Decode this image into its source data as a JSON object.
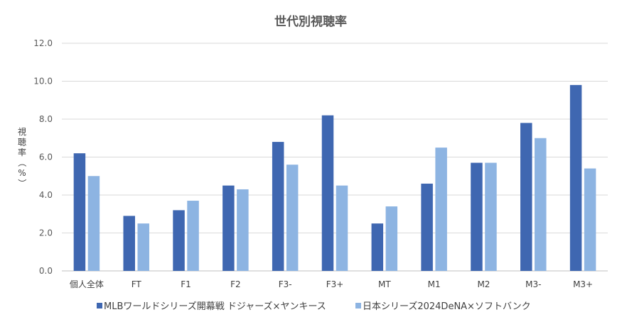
{
  "chart_data": {
    "type": "bar",
    "title": "世代別視聴率",
    "xlabel": "",
    "ylabel": "視聴率（%）",
    "ylim": [
      0,
      12
    ],
    "yticks": [
      "0.0",
      "2.0",
      "4.0",
      "6.0",
      "8.0",
      "10.0",
      "12.0"
    ],
    "grid": true,
    "legend_position": "bottom",
    "categories": [
      "個人全体",
      "FT",
      "F1",
      "F2",
      "F3-",
      "F3+",
      "MT",
      "M1",
      "M2",
      "M3-",
      "M3+"
    ],
    "series": [
      {
        "name": "MLBワールドシリーズ開幕戦 ドジャーズ×ヤンキース",
        "color": "#3f67b1",
        "values": [
          6.2,
          2.9,
          3.2,
          4.5,
          6.8,
          8.2,
          2.5,
          4.6,
          5.7,
          7.8,
          9.8
        ]
      },
      {
        "name": "日本シリーズ2024DeNA×ソフトバンク",
        "color": "#8db4e2",
        "values": [
          5.0,
          2.5,
          3.7,
          4.3,
          5.6,
          4.5,
          3.4,
          6.5,
          5.7,
          7.0,
          5.4
        ]
      }
    ]
  }
}
